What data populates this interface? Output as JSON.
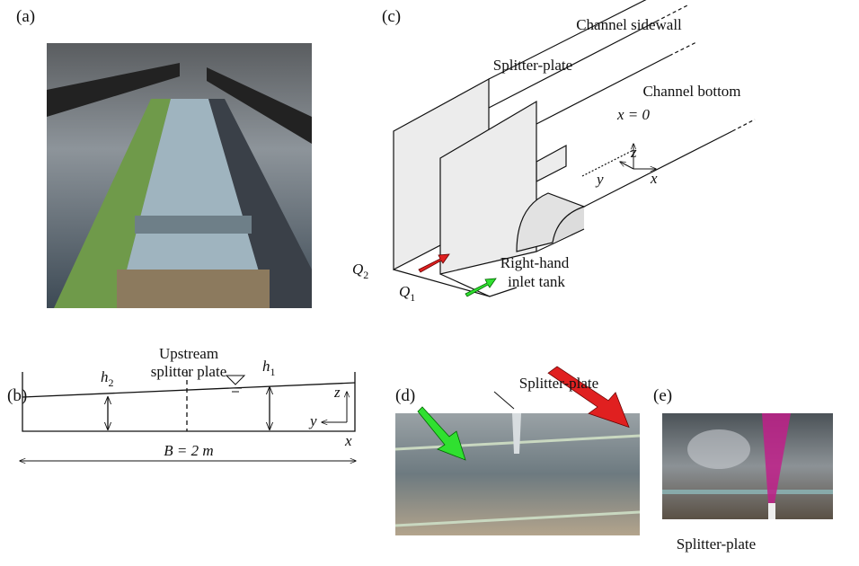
{
  "panel_a": {
    "label": "(a)"
  },
  "panel_b": {
    "label": "(b)",
    "upstream_label": [
      "Upstream",
      "splitter plate"
    ],
    "h2": {
      "symbol": "h",
      "subscript": "2"
    },
    "h1": {
      "symbol": "h",
      "subscript": "1"
    },
    "axes": {
      "z": "z",
      "y": "y",
      "x": "x"
    },
    "width_label": "B = 2 m"
  },
  "panel_c": {
    "label": "(c)",
    "sidewall_label": "Channel sidewall",
    "splitter_label": "Splitter-plate",
    "bottom_label": "Channel bottom",
    "origin_label": "x = 0",
    "axes": {
      "z": "z",
      "y": "y",
      "x": "x"
    },
    "q2": {
      "symbol": "Q",
      "subscript": "2"
    },
    "q1": {
      "symbol": "Q",
      "subscript": "1"
    },
    "tank_label": [
      "Right-hand",
      "inlet tank"
    ]
  },
  "panel_d": {
    "label": "(d)",
    "splitter_label": "Splitter-plate"
  },
  "panel_e": {
    "label": "(e)",
    "splitter_label": "Splitter-plate"
  }
}
